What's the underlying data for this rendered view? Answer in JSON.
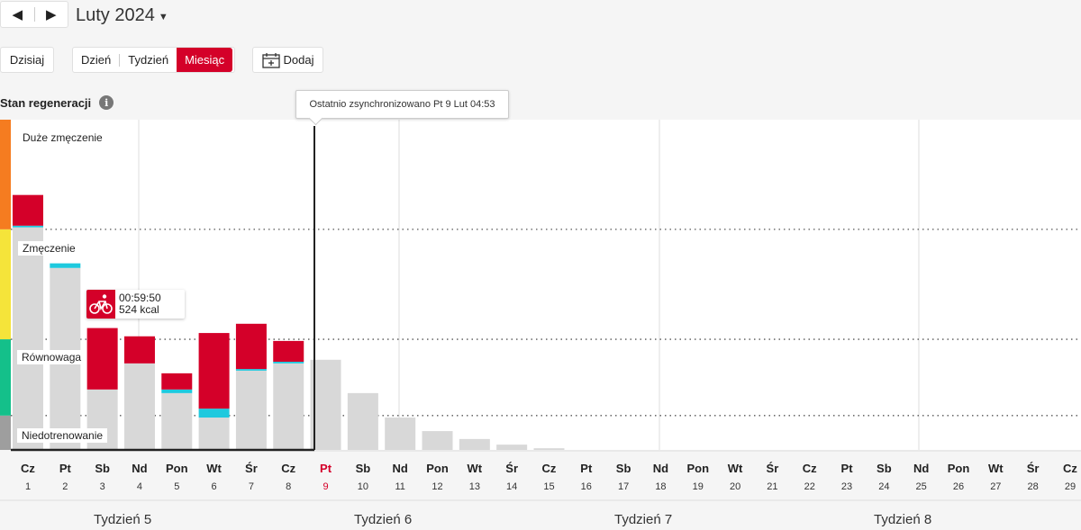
{
  "header": {
    "prev_label": "◀",
    "next_label": "▶",
    "month_title": "Luty 2024"
  },
  "toolbar": {
    "today_label": "Dzisiaj",
    "views": [
      "Dzień",
      "Tydzień",
      "Miesiąc"
    ],
    "active_view": "Miesiąc",
    "add_label": "Dodaj"
  },
  "section": {
    "title": "Stan regeneracji",
    "info_icon": "i"
  },
  "sync_tooltip": "Ostatnio zsynchronizowano Pt 9 Lut 04:53",
  "zones": [
    {
      "label": "Duże zmęczenie",
      "color": "#f57c20"
    },
    {
      "label": "Zmęczenie",
      "color": "#f5e43a"
    },
    {
      "label": "Równowaga",
      "color": "#14c08a"
    },
    {
      "label": "Niedotrenowanie",
      "color": "#9e9e9e"
    }
  ],
  "activity_tooltip": {
    "icon": "bike-icon",
    "duration": "00:59:50",
    "energy": "524 kcal"
  },
  "colors": {
    "accent": "#d40029",
    "cyan": "#1ec9de",
    "bar_gray": "#d8d8d8",
    "today": "#d40029"
  },
  "chart_data": {
    "type": "bar",
    "days": [
      {
        "dow": "Cz",
        "day": "1"
      },
      {
        "dow": "Pt",
        "day": "2"
      },
      {
        "dow": "Sb",
        "day": "3"
      },
      {
        "dow": "Nd",
        "day": "4"
      },
      {
        "dow": "Pon",
        "day": "5"
      },
      {
        "dow": "Wt",
        "day": "6"
      },
      {
        "dow": "Śr",
        "day": "7"
      },
      {
        "dow": "Cz",
        "day": "8"
      },
      {
        "dow": "Pt",
        "day": "9"
      },
      {
        "dow": "Sb",
        "day": "10"
      },
      {
        "dow": "Nd",
        "day": "11"
      },
      {
        "dow": "Pon",
        "day": "12"
      },
      {
        "dow": "Wt",
        "day": "13"
      },
      {
        "dow": "Śr",
        "day": "14"
      },
      {
        "dow": "Cz",
        "day": "15"
      },
      {
        "dow": "Pt",
        "day": "16"
      },
      {
        "dow": "Sb",
        "day": "17"
      },
      {
        "dow": "Nd",
        "day": "18"
      },
      {
        "dow": "Pon",
        "day": "19"
      },
      {
        "dow": "Wt",
        "day": "20"
      },
      {
        "dow": "Śr",
        "day": "21"
      },
      {
        "dow": "Cz",
        "day": "22"
      },
      {
        "dow": "Pt",
        "day": "23"
      },
      {
        "dow": "Sb",
        "day": "24"
      },
      {
        "dow": "Nd",
        "day": "25"
      },
      {
        "dow": "Pon",
        "day": "26"
      },
      {
        "dow": "Wt",
        "day": "27"
      },
      {
        "dow": "Śr",
        "day": "28"
      },
      {
        "dow": "Cz",
        "day": "29"
      }
    ],
    "today_index": 8,
    "ylim": [
      0,
      100
    ],
    "zone_thresholds": [
      10.4,
      33.5,
      66.8
    ],
    "bars": [
      {
        "gray": 67.4,
        "cyan": 0.5,
        "red": 9.3
      },
      {
        "gray": 55.1,
        "cyan": 1.4,
        "red": 0
      },
      {
        "gray": 18.3,
        "cyan": 0,
        "red": 18.6
      },
      {
        "gray": 26.2,
        "cyan": 0,
        "red": 8.2
      },
      {
        "gray": 17.2,
        "cyan": 1.1,
        "red": 4.9
      },
      {
        "gray": 9.8,
        "cyan": 2.7,
        "red": 22.9
      },
      {
        "gray": 24.0,
        "cyan": 0.5,
        "red": 13.7
      },
      {
        "gray": 26.2,
        "cyan": 0.5,
        "red": 6.3
      },
      {
        "gray": 27.3,
        "cyan": 0,
        "red": 0
      },
      {
        "gray": 17.2,
        "cyan": 0,
        "red": 0
      },
      {
        "gray": 9.8,
        "cyan": 0,
        "red": 0
      },
      {
        "gray": 5.7,
        "cyan": 0,
        "red": 0
      },
      {
        "gray": 3.3,
        "cyan": 0,
        "red": 0
      },
      {
        "gray": 1.6,
        "cyan": 0,
        "red": 0
      },
      {
        "gray": 0.5,
        "cyan": 0,
        "red": 0
      }
    ],
    "weeks": [
      "Tydzień 5",
      "Tydzień 6",
      "Tydzień 7",
      "Tydzień 8"
    ]
  }
}
